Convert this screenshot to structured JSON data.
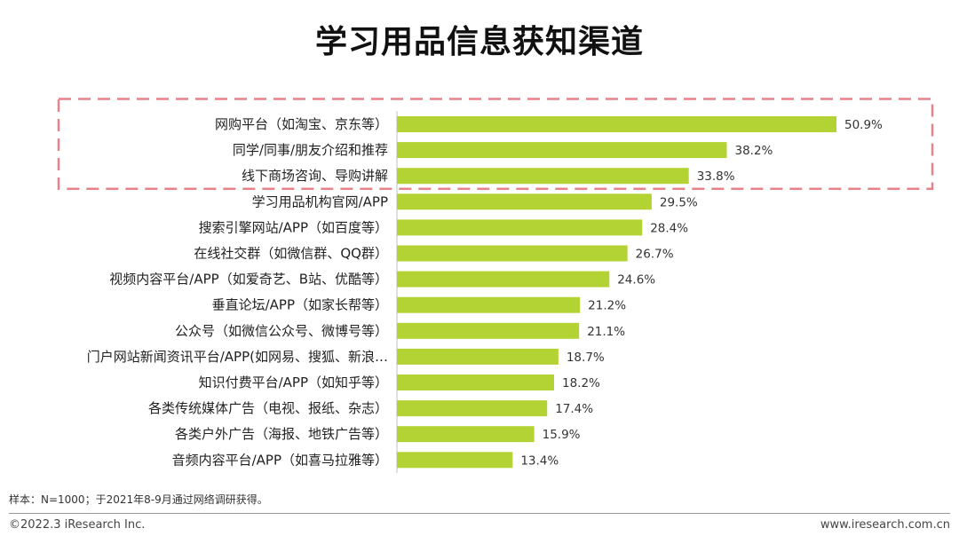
{
  "chart_data": {
    "type": "bar",
    "orientation": "horizontal",
    "title": "学习用品信息获知渠道",
    "categories": [
      "网购平台（如淘宝、京东等）",
      "同学/同事/朋友介绍和推荐",
      "线下商场咨询、导购讲解",
      "学习用品机构官网/APP",
      "搜索引擎网站/APP（如百度等）",
      "在线社交群（如微信群、QQ群）",
      "视频内容平台/APP（如爱奇艺、B站、优酷等）",
      "垂直论坛/APP（如家长帮等）",
      "公众号（如微信公众号、微博号等）",
      "门户网站新闻资讯平台/APP(如网易、搜狐、新浪…",
      "知识付费平台/APP（如知乎等）",
      "各类传统媒体广告（电视、报纸、杂志）",
      "各类户外广告（海报、地铁广告等）",
      "音频内容平台/APP（如喜马拉雅等）"
    ],
    "values": [
      50.9,
      38.2,
      33.8,
      29.5,
      28.4,
      26.7,
      24.6,
      21.2,
      21.1,
      18.7,
      18.2,
      17.4,
      15.9,
      13.4
    ],
    "value_labels": [
      "50.9%",
      "38.2%",
      "33.8%",
      "29.5%",
      "28.4%",
      "26.7%",
      "24.6%",
      "21.2%",
      "21.1%",
      "18.7%",
      "18.2%",
      "17.4%",
      "15.9%",
      "13.4%"
    ],
    "unit": "%",
    "xlim": [
      0,
      50.9
    ],
    "grid": false,
    "bar_color": "#b3d334",
    "highlight_color": "#e8818a",
    "highlight_count": 3
  },
  "footer": {
    "note": "样本：N=1000；于2021年8-9月通过网络调研获得。",
    "copyright": "©2022.3 iResearch Inc.",
    "website": "www.iresearch.com.cn"
  }
}
